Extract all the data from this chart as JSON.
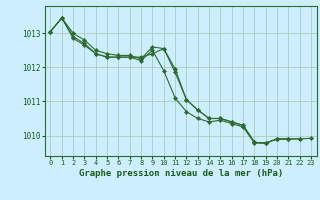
{
  "background_color": "#cceeff",
  "grid_color": "#aaccbb",
  "line_color": "#2d6a2d",
  "marker_color": "#2d6a2d",
  "text_color": "#1a5c1a",
  "xlabel": "Graphe pression niveau de la mer (hPa)",
  "ylim": [
    1009.4,
    1013.8
  ],
  "xlim": [
    -0.5,
    23.5
  ],
  "yticks": [
    1010,
    1011,
    1012,
    1013
  ],
  "xticks": [
    0,
    1,
    2,
    3,
    4,
    5,
    6,
    7,
    8,
    9,
    10,
    11,
    12,
    13,
    14,
    15,
    16,
    17,
    18,
    19,
    20,
    21,
    22,
    23
  ],
  "series": [
    [
      1013.05,
      1013.45,
      1013.0,
      1012.8,
      1012.5,
      1012.4,
      1012.35,
      1012.35,
      1012.25,
      1012.6,
      1012.55,
      1011.95,
      1011.05,
      1010.75,
      1010.5,
      1010.5,
      1010.4,
      1010.3,
      1009.8,
      1009.78,
      1009.9,
      1009.9,
      null,
      null
    ],
    [
      1013.05,
      1013.45,
      1012.9,
      1012.7,
      1012.4,
      1012.3,
      1012.3,
      1012.3,
      1012.2,
      1012.5,
      1011.9,
      1011.1,
      1010.7,
      1010.5,
      1010.4,
      1010.45,
      1010.35,
      1010.25,
      1009.78,
      1009.78,
      1009.9,
      1009.9,
      1009.9,
      null
    ],
    [
      1013.05,
      1013.45,
      1012.85,
      1012.65,
      1012.4,
      1012.3,
      1012.3,
      1012.3,
      1012.3,
      1012.4,
      1012.55,
      1011.85,
      1011.05,
      1010.75,
      1010.5,
      1010.5,
      1010.4,
      1010.3,
      1009.8,
      1009.78,
      1009.9,
      1009.9,
      1009.9,
      1009.92
    ]
  ]
}
